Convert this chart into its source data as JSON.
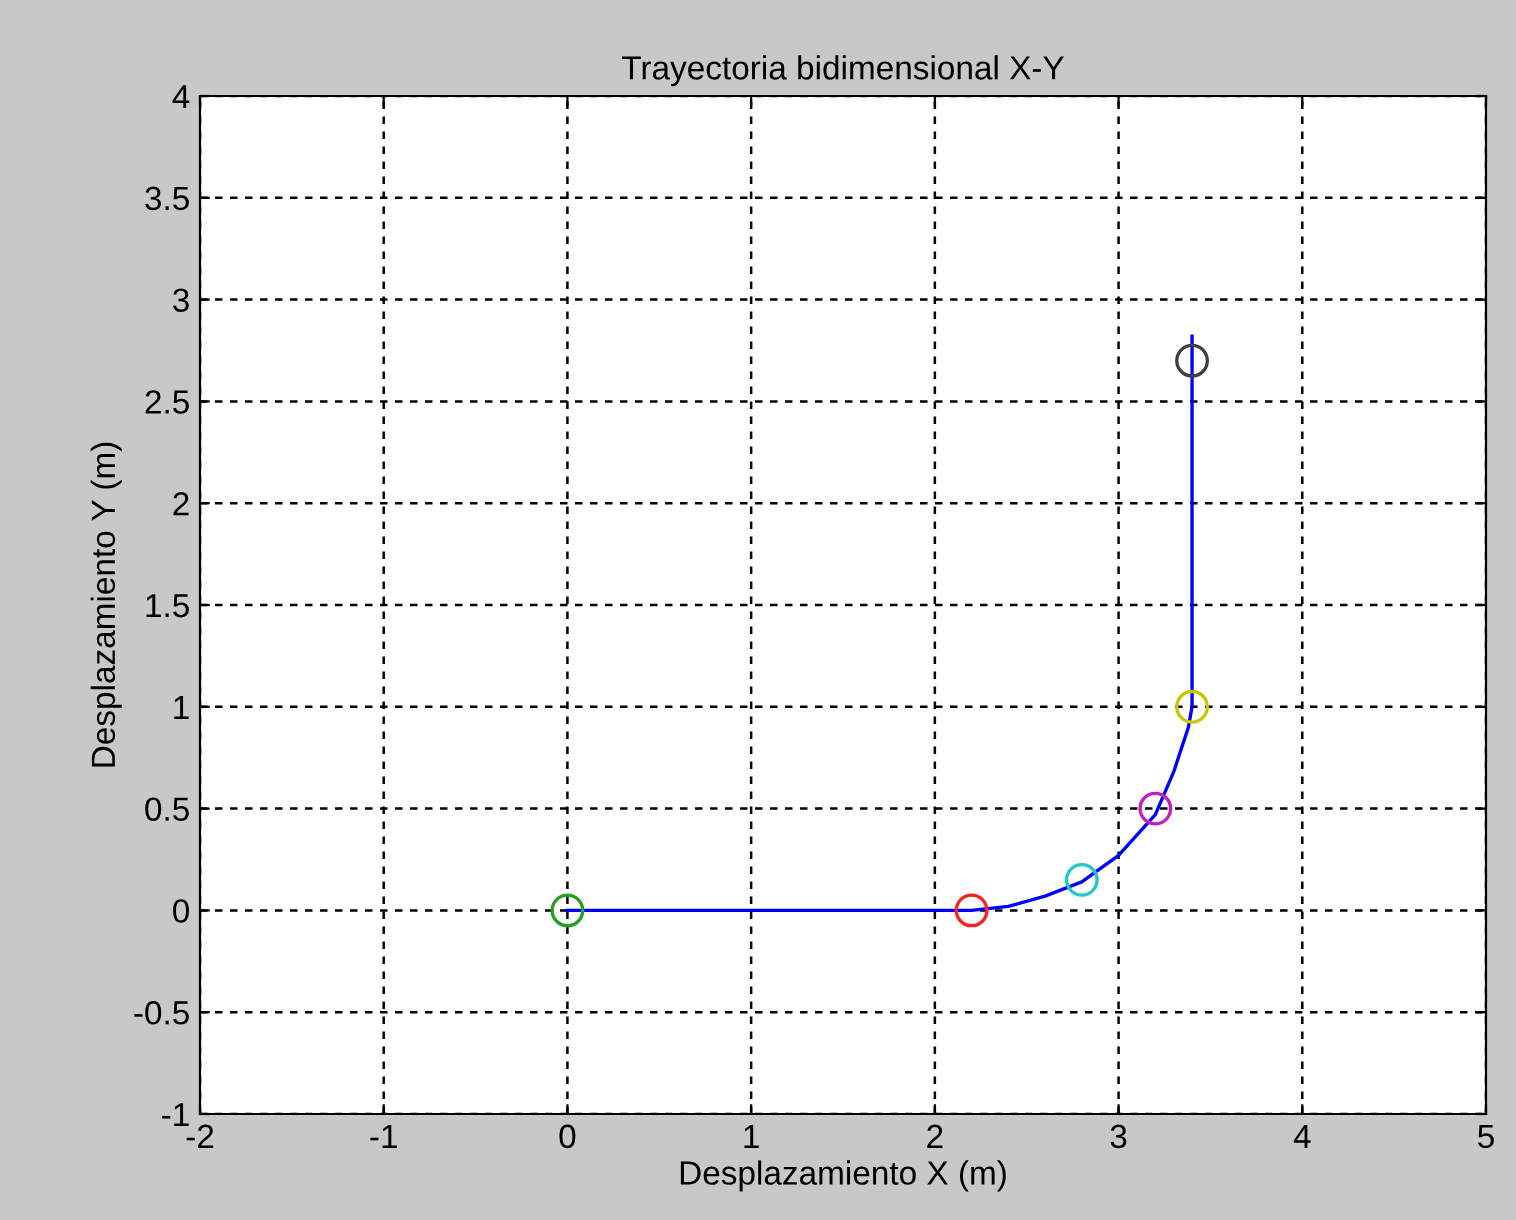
{
  "chart_data": {
    "type": "line",
    "title": "Trayectoria bidimensional X-Y",
    "xlabel": "Desplazamiento X (m)",
    "ylabel": "Desplazamiento Y (m)",
    "series": [
      {
        "color": "#0000ff",
        "x": [
          0,
          2.2,
          2.4,
          2.6,
          2.8,
          3.0,
          3.2,
          3.3,
          3.38,
          3.4,
          3.4
        ],
        "values": [
          0,
          0,
          0.02,
          0.07,
          0.14,
          0.27,
          0.47,
          0.68,
          0.9,
          1.0,
          2.82
        ],
        "marker": "none"
      },
      {
        "type": "scatter",
        "color": "#22a022",
        "x": [
          0
        ],
        "values": [
          0
        ],
        "marker": "circle"
      },
      {
        "type": "scatter",
        "color": "#ff2020",
        "x": [
          2.2
        ],
        "values": [
          0
        ],
        "marker": "circle"
      },
      {
        "type": "scatter",
        "color": "#20c8c8",
        "x": [
          2.8
        ],
        "values": [
          0.15
        ],
        "marker": "circle"
      },
      {
        "type": "scatter",
        "color": "#c020c0",
        "x": [
          3.2
        ],
        "values": [
          0.5
        ],
        "marker": "circle"
      },
      {
        "type": "scatter",
        "color": "#c8c800",
        "x": [
          3.4
        ],
        "values": [
          1.0
        ],
        "marker": "circle"
      },
      {
        "type": "scatter",
        "color": "#404040",
        "x": [
          3.4
        ],
        "values": [
          2.7
        ],
        "marker": "circle"
      }
    ],
    "xlim": [
      -2,
      5
    ],
    "xticks": [
      -2,
      -1,
      0,
      1,
      2,
      3,
      4,
      5
    ],
    "ylim": [
      -1,
      4
    ],
    "yticks": [
      -1,
      -0.5,
      0,
      0.5,
      1,
      1.5,
      2,
      2.5,
      3,
      3.5,
      4
    ],
    "grid": true,
    "line_style": "solid",
    "legend": false
  }
}
